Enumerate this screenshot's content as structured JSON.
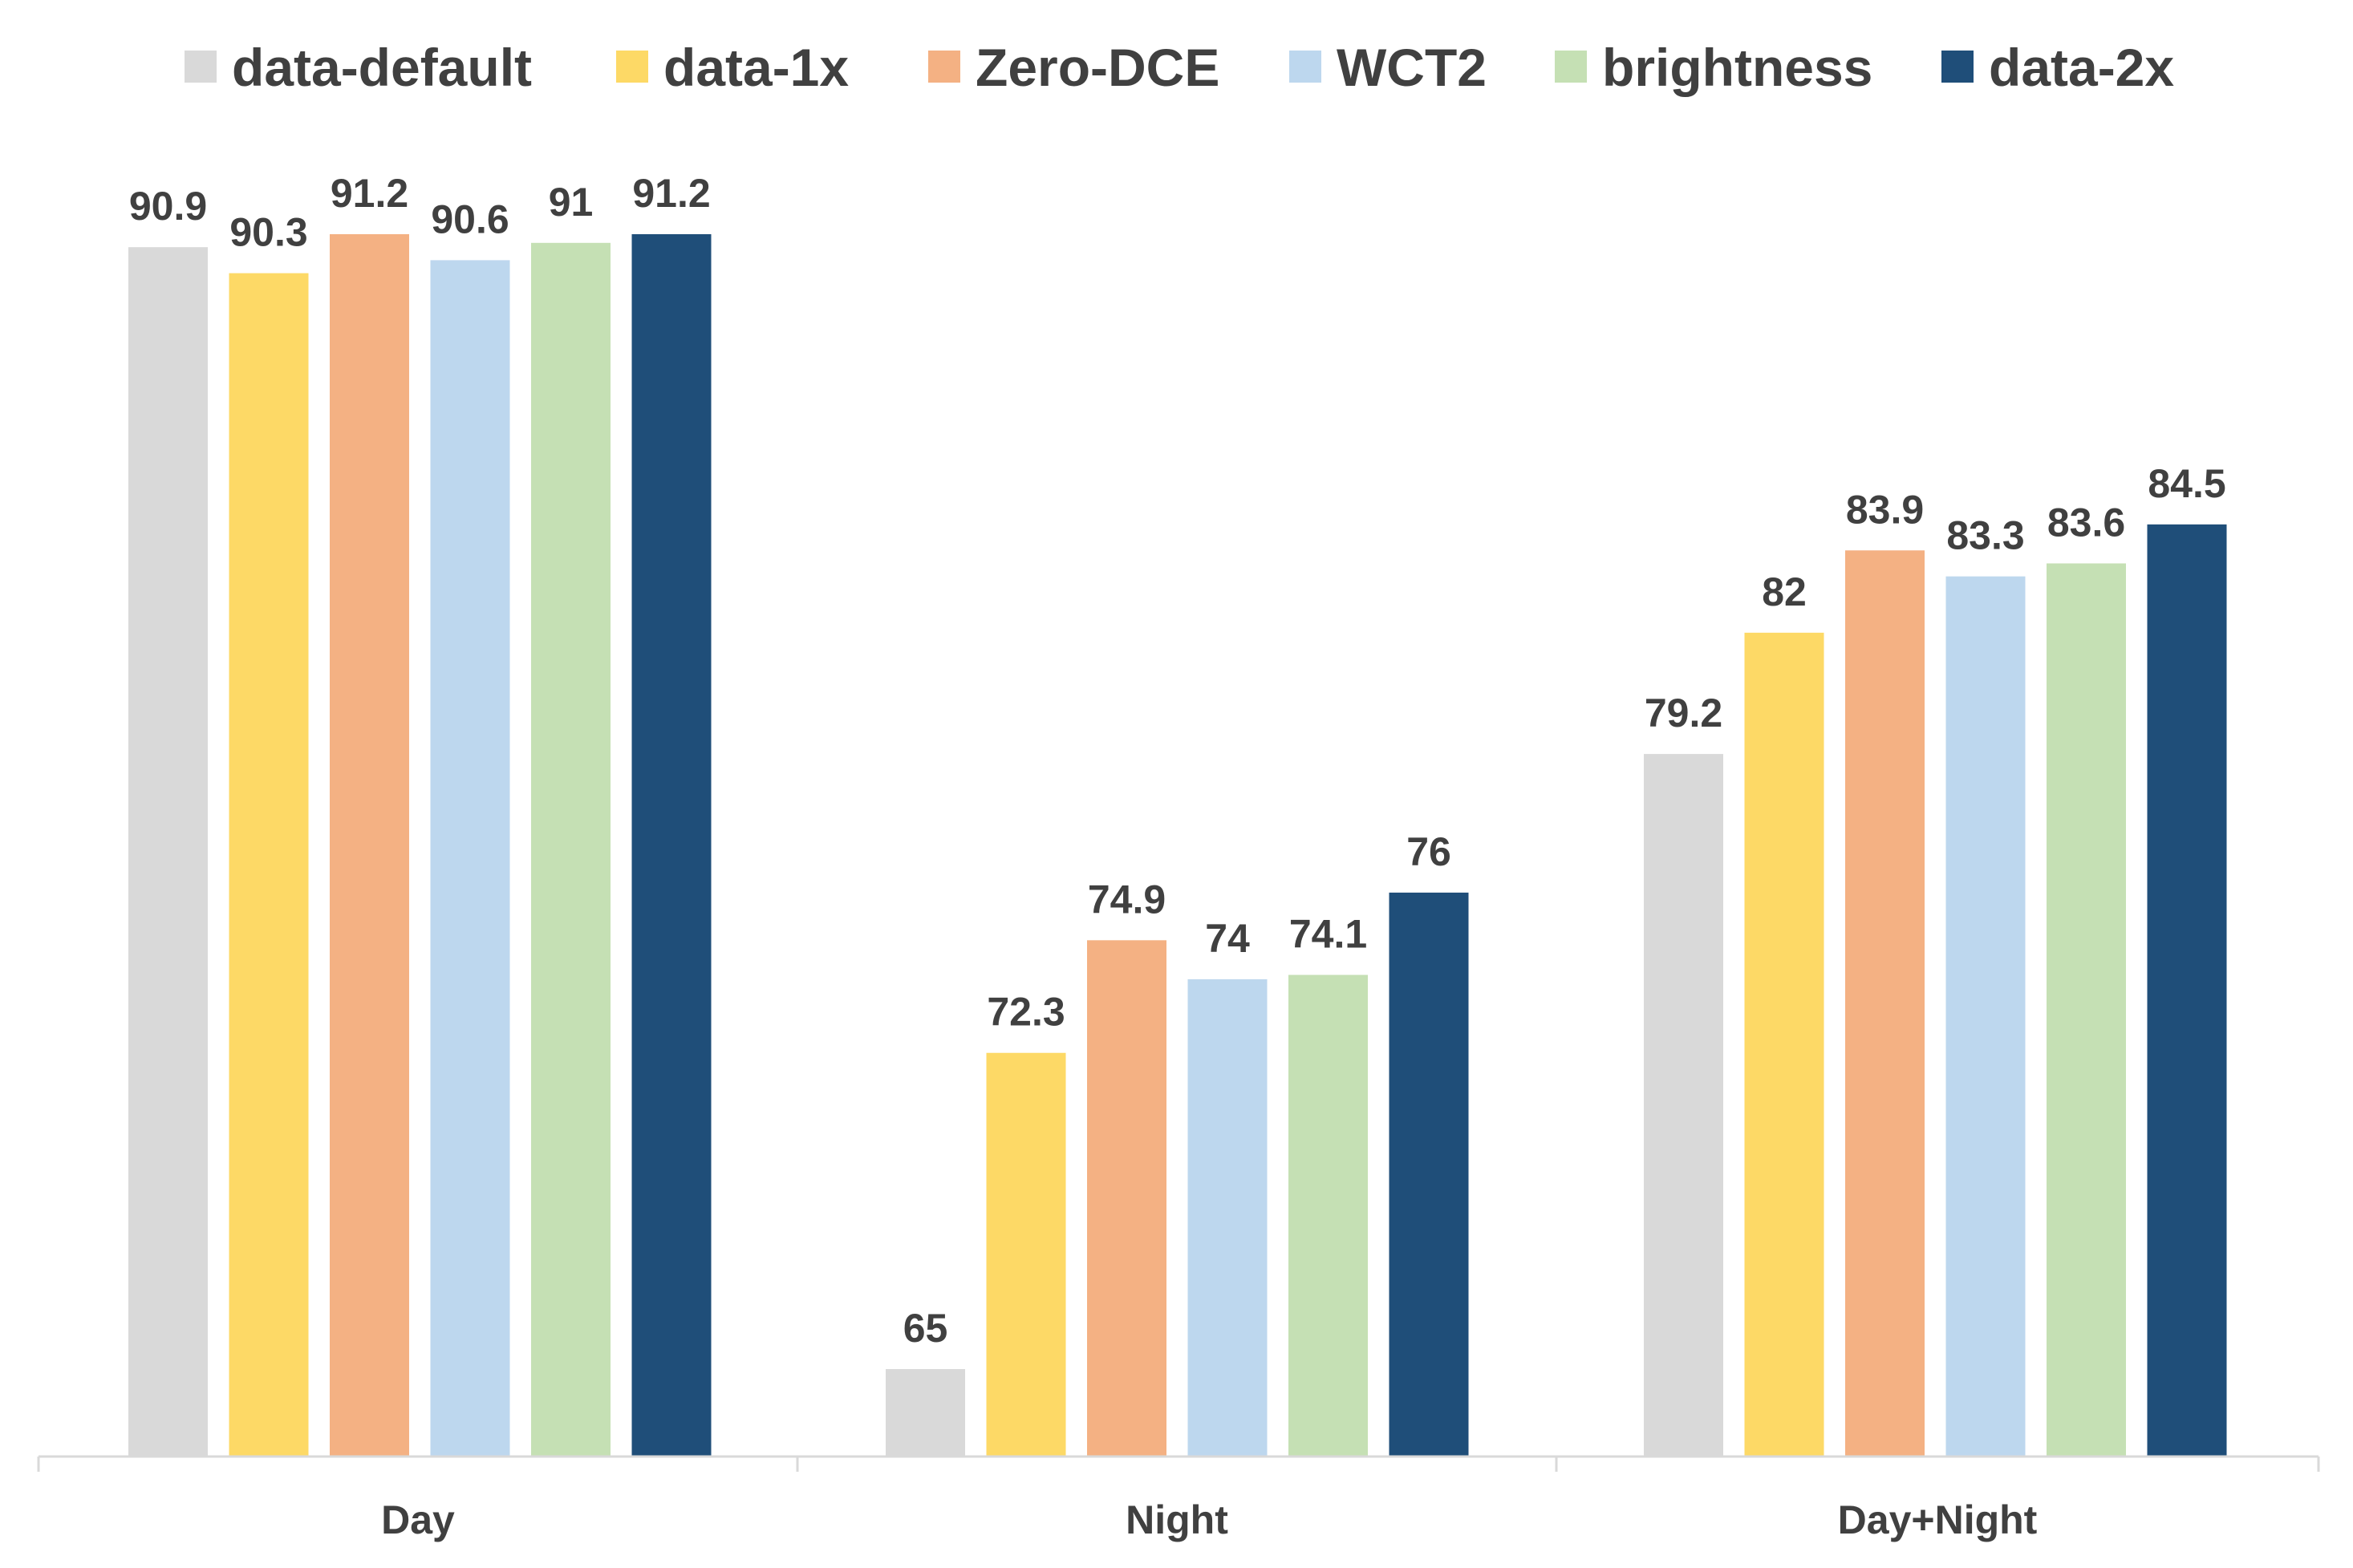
{
  "chart_data": {
    "type": "bar",
    "categories": [
      "Day",
      "Night",
      "Day+Night"
    ],
    "series": [
      {
        "name": "data-default",
        "color": "#D9D9D9",
        "values": [
          90.9,
          65,
          79.2
        ]
      },
      {
        "name": "data-1x",
        "color": "#FDD966",
        "values": [
          90.3,
          72.3,
          82
        ]
      },
      {
        "name": "Zero-DCE",
        "color": "#F4B183",
        "values": [
          91.2,
          74.9,
          83.9
        ]
      },
      {
        "name": "WCT2",
        "color": "#BDD7EE",
        "values": [
          90.6,
          74,
          83.3
        ]
      },
      {
        "name": "brightness",
        "color": "#C5E0B4",
        "values": [
          91,
          74.1,
          83.6
        ]
      },
      {
        "name": "data-2x",
        "color": "#1F4E79",
        "values": [
          91.2,
          76,
          84.5
        ]
      }
    ],
    "value_labels": [
      [
        "90.9",
        "65",
        "79.2"
      ],
      [
        "90.3",
        "72.3",
        "82"
      ],
      [
        "91.2",
        "74.9",
        "83.9"
      ],
      [
        "90.6",
        "74",
        "83.3"
      ],
      [
        "91",
        "74.1",
        "83.6"
      ],
      [
        "91.2",
        "76",
        "84.5"
      ]
    ],
    "title": "",
    "xlabel": "",
    "ylabel": "",
    "ylim": [
      63,
      91.2
    ],
    "y_axis_visible": false,
    "grid": false,
    "legend_position": "top",
    "text_color": "#404040",
    "axis_color": "#D9D9D9"
  }
}
